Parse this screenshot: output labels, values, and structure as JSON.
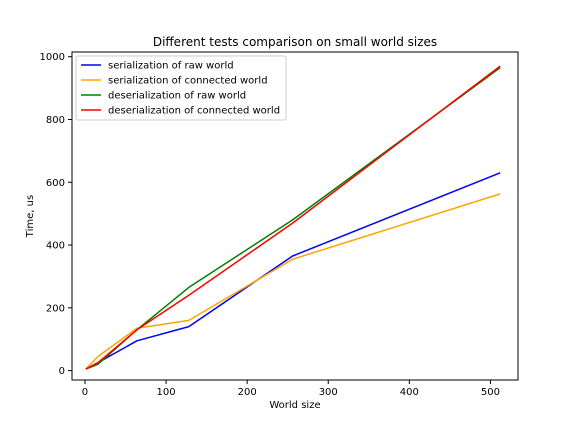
{
  "chart_data": {
    "type": "line",
    "title": "Different tests comparison on small world sizes",
    "xlabel": "World size",
    "ylabel": "Time, us",
    "xlim": [
      -16,
      534
    ],
    "ylim": [
      -30,
      1015
    ],
    "xticks": [
      0,
      100,
      200,
      300,
      400,
      500
    ],
    "yticks": [
      0,
      200,
      400,
      600,
      800,
      1000
    ],
    "grid": false,
    "legend_position": "upper-left",
    "series": [
      {
        "name": "serialization of raw world",
        "color": "#0000ff",
        "x": [
          1,
          16,
          64,
          128,
          256,
          512
        ],
        "y": [
          5,
          25,
          95,
          140,
          365,
          630
        ]
      },
      {
        "name": "serialization of connected world",
        "color": "#ffa500",
        "x": [
          1,
          16,
          64,
          128,
          256,
          512
        ],
        "y": [
          5,
          45,
          135,
          160,
          355,
          563
        ]
      },
      {
        "name": "deserialization of raw world",
        "color": "#008000",
        "x": [
          1,
          16,
          64,
          128,
          256,
          512
        ],
        "y": [
          5,
          20,
          130,
          265,
          480,
          965
        ]
      },
      {
        "name": "deserialization of connected world",
        "color": "#ff0000",
        "x": [
          1,
          16,
          64,
          128,
          256,
          512
        ],
        "y": [
          5,
          25,
          130,
          240,
          470,
          970
        ]
      }
    ]
  }
}
